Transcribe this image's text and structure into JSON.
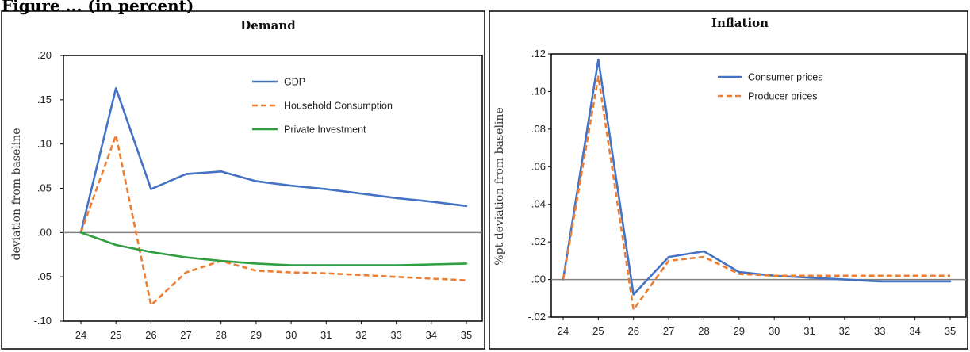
{
  "figure": {
    "heading": "Figure ... (in percent)"
  },
  "colors": {
    "gdp": "#4472c4",
    "household": "#ed7d31",
    "investment": "#2e9e3e",
    "consumer": "#4472c4",
    "producer": "#ed7d31",
    "zero_line": "#808080",
    "frame": "#000000"
  },
  "chart_data": [
    {
      "type": "line",
      "title": "Demand",
      "xlabel": "",
      "ylabel": "deviation from baseline",
      "x": [
        24,
        25,
        26,
        27,
        28,
        29,
        30,
        31,
        32,
        33,
        34,
        35
      ],
      "ylim": [
        -0.1,
        0.2
      ],
      "yticks": [
        0.2,
        0.15,
        0.1,
        0.05,
        0.0,
        -0.05,
        -0.1
      ],
      "ytick_labels": [
        ".20",
        ".15",
        ".10",
        ".05",
        ".00",
        "-.05",
        "-.10"
      ],
      "grid": false,
      "legend": "top-center",
      "series": [
        {
          "name": "GDP",
          "style": "solid",
          "color_key": "gdp",
          "values": [
            0.0,
            0.163,
            0.049,
            0.066,
            0.069,
            0.058,
            0.053,
            0.049,
            0.044,
            0.039,
            0.035,
            0.03
          ]
        },
        {
          "name": "Household Consumption",
          "style": "dashed",
          "color_key": "household",
          "values": [
            0.0,
            0.11,
            -0.082,
            -0.045,
            -0.032,
            -0.043,
            -0.045,
            -0.046,
            -0.048,
            -0.05,
            -0.052,
            -0.054
          ]
        },
        {
          "name": "Private Investment",
          "style": "solid",
          "color_key": "investment",
          "values": [
            0.0,
            -0.014,
            -0.022,
            -0.028,
            -0.032,
            -0.035,
            -0.037,
            -0.037,
            -0.037,
            -0.037,
            -0.036,
            -0.035
          ]
        }
      ]
    },
    {
      "type": "line",
      "title": "Inflation",
      "xlabel": "",
      "ylabel": "%pt deviation from baseline",
      "x": [
        24,
        25,
        26,
        27,
        28,
        29,
        30,
        31,
        32,
        33,
        34,
        35
      ],
      "ylim": [
        -0.02,
        0.12
      ],
      "yticks": [
        0.12,
        0.1,
        0.08,
        0.06,
        0.04,
        0.02,
        0.0,
        -0.02
      ],
      "ytick_labels": [
        ".12",
        ".10",
        ".08",
        ".06",
        ".04",
        ".02",
        ".00",
        "-.02"
      ],
      "grid": false,
      "legend": "top-center",
      "series": [
        {
          "name": "Consumer prices",
          "style": "solid",
          "color_key": "consumer",
          "values": [
            0.0,
            0.117,
            -0.008,
            0.012,
            0.015,
            0.004,
            0.002,
            0.001,
            0.0,
            -0.001,
            -0.001,
            -0.001
          ]
        },
        {
          "name": "Producer prices",
          "style": "dashed",
          "color_key": "producer",
          "values": [
            0.0,
            0.108,
            -0.016,
            0.01,
            0.012,
            0.003,
            0.002,
            0.002,
            0.002,
            0.002,
            0.002,
            0.002
          ]
        }
      ]
    }
  ]
}
